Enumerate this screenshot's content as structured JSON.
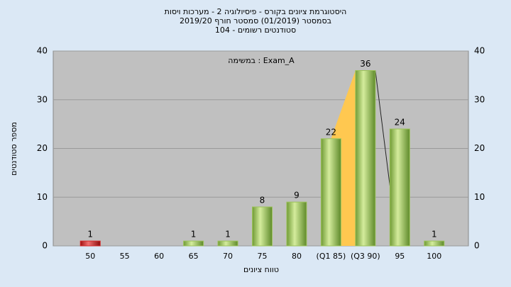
{
  "chart_data": {
    "type": "bar",
    "title": "היסטוגרמת ציונים בקורס - פיסיולוגיה 2 - מערכות ויסות",
    "subtitle": "בסמסטר  (01/2019)  סמסטר חורף 2019/20",
    "subtitle2": "סטודנטים רשומים - 104",
    "annotation": "Exam_A : במשימה",
    "x_label": "טווח ציונים",
    "y_label": "מספר סטודנטים",
    "categories": [
      "50",
      "55",
      "60",
      "65",
      "70",
      "75",
      "80",
      "(Q1 85)",
      "(Q3 90)",
      "95",
      "100"
    ],
    "values": [
      1,
      0,
      0,
      1,
      1,
      8,
      9,
      22,
      36,
      24,
      1
    ],
    "colors": [
      "#d42a2a",
      "#9cc25a",
      "#9cc25a",
      "#9cc25a",
      "#9cc25a",
      "#9cc25a",
      "#9cc25a",
      "#9cc25a",
      "#9cc25a",
      "#9cc25a",
      "#9cc25a"
    ],
    "ylim": [
      0,
      40
    ],
    "yticks": [
      0,
      10,
      20,
      30,
      40
    ],
    "grid": true
  }
}
